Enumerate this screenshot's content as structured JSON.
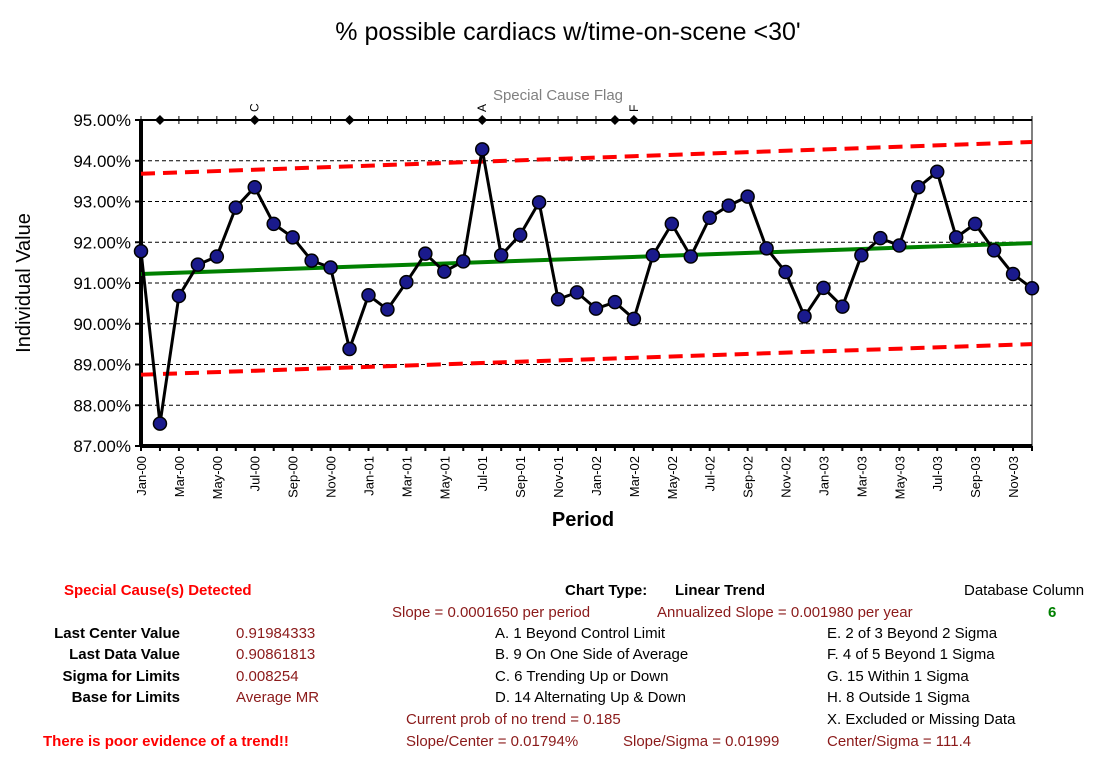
{
  "chart_data": {
    "type": "line",
    "title": "% possible cardiacs w/time-on-scene <30'",
    "xlabel": "Period",
    "ylabel": "Individual Value",
    "flag_label": "Special Cause Flag",
    "ylim": [
      0.87,
      0.95
    ],
    "yticks": [
      "95.00%",
      "94.00%",
      "93.00%",
      "92.00%",
      "91.00%",
      "90.00%",
      "89.00%",
      "88.00%",
      "87.00%"
    ],
    "ytick_values": [
      0.95,
      0.94,
      0.93,
      0.92,
      0.91,
      0.9,
      0.89,
      0.88,
      0.87
    ],
    "x_tick_labels": [
      "Jan-00",
      "Mar-00",
      "May-00",
      "Jul-00",
      "Sep-00",
      "Nov-00",
      "Jan-01",
      "Mar-01",
      "May-01",
      "Jul-01",
      "Sep-01",
      "Nov-01",
      "Jan-02",
      "Mar-02",
      "May-02",
      "Jul-02",
      "Sep-02",
      "Nov-02",
      "Jan-03",
      "Mar-03",
      "May-03",
      "Jul-03",
      "Sep-03",
      "Nov-03"
    ],
    "grid": "horizontal dashed",
    "series": [
      {
        "values": [
          0.9178,
          0.8755,
          0.9068,
          0.9145,
          0.9165,
          0.9285,
          0.9335,
          0.9245,
          0.9212,
          0.9155,
          0.9138,
          0.8938,
          0.907,
          0.9035,
          0.9102,
          0.9172,
          0.9128,
          0.9153,
          0.9428,
          0.9168,
          0.9218,
          0.9298,
          0.906,
          0.9077,
          0.9037,
          0.9053,
          0.9012,
          0.9168,
          0.9245,
          0.9165,
          0.926,
          0.929,
          0.9312,
          0.9185,
          0.9127,
          0.9018,
          0.9088,
          0.9042,
          0.9168,
          0.921,
          0.9192,
          0.9335,
          0.9373,
          0.9212,
          0.9245,
          0.918,
          0.9122,
          0.9087
        ],
        "color": "#000000",
        "marker_color": "#1a1a8c"
      },
      {
        "values_endpoints": [
          0.9122,
          0.9198
        ],
        "color": "#008000"
      },
      {
        "values_endpoints": [
          0.9368,
          0.9446
        ],
        "color": "#ff0000"
      },
      {
        "values_endpoints": [
          0.8875,
          0.895
        ],
        "color": "#ff0000"
      }
    ],
    "flag_markers": [
      1,
      6,
      11,
      18,
      25,
      26
    ],
    "flag_letters": [
      {
        "index": 6,
        "letter": "C"
      },
      {
        "index": 18,
        "letter": "A"
      },
      {
        "index": 26,
        "letter": "F"
      }
    ]
  },
  "summary": {
    "special_cause": "Special Cause(s) Detected",
    "chart_type_label": "Chart Type:",
    "chart_type_value": "Linear Trend",
    "database_column_label": "Database Column",
    "database_column_value": "6",
    "slope": "Slope = 0.0001650 per period",
    "annualized_slope": "Annualized Slope = 0.001980 per year",
    "last_center_label": "Last Center Value",
    "last_center_value": "0.91984333",
    "last_data_label": "Last Data Value",
    "last_data_value": "0.90861813",
    "sigma_label": "Sigma for Limits",
    "sigma_value": "0.008254",
    "base_label": "Base for Limits",
    "base_value": "Average MR",
    "rule_a": "A.  1 Beyond Control Limit",
    "rule_b": "B.  9 On One Side of Average",
    "rule_c": "C.  6 Trending Up or Down",
    "rule_d": "D.  14 Alternating  Up & Down",
    "rule_e": "E.   2 of 3 Beyond 2 Sigma",
    "rule_f": "F.   4 of 5 Beyond 1 Sigma",
    "rule_g": "G.   15 Within 1 Sigma",
    "rule_h": "H.   8 Outside 1 Sigma",
    "rule_x": "X.  Excluded or Missing Data",
    "prob_no_trend": "Current prob of no trend = 0.185",
    "slope_center": "Slope/Center = 0.01794%",
    "slope_sigma": "Slope/Sigma = 0.01999",
    "center_sigma": "Center/Sigma = 111.4",
    "trend_evidence": "There is poor evidence of a trend!!"
  }
}
